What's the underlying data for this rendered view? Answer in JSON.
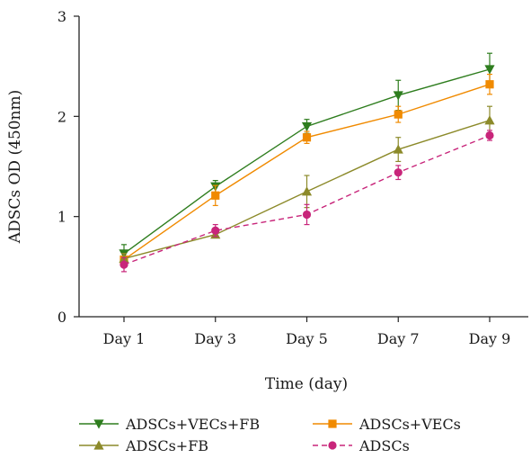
{
  "chart_data": {
    "type": "line",
    "categories": [
      "Day 1",
      "Day 3",
      "Day 5",
      "Day 7",
      "Day 9"
    ],
    "xlabel": "Time (day)",
    "ylabel": "ADSCs OD (450nm)",
    "ylim": [
      0,
      3
    ],
    "yticks": [
      "0",
      "1",
      "2",
      "3"
    ],
    "grid": false,
    "legend_position": "bottom",
    "series": [
      {
        "name": "ADSCs+VECs+FB",
        "color": "#2e7d1e",
        "marker": "triangle-down",
        "dash": "solid",
        "values": [
          0.63,
          1.3,
          1.9,
          2.21,
          2.47
        ],
        "errors": [
          0.09,
          0.06,
          0.07,
          0.15,
          0.16
        ]
      },
      {
        "name": "ADSCs+VECs",
        "color": "#f08a00",
        "marker": "square",
        "dash": "solid",
        "values": [
          0.57,
          1.21,
          1.79,
          2.02,
          2.32
        ],
        "errors": [
          0.06,
          0.1,
          0.06,
          0.08,
          0.1
        ]
      },
      {
        "name": "ADSCs+FB",
        "color": "#8c8a2a",
        "marker": "triangle-up",
        "dash": "solid",
        "values": [
          0.58,
          0.82,
          1.25,
          1.67,
          1.96
        ],
        "errors": [
          0.05,
          0.02,
          0.16,
          0.12,
          0.14
        ]
      },
      {
        "name": "ADSCs",
        "color": "#c8257a",
        "marker": "circle",
        "dash": "dashed",
        "values": [
          0.52,
          0.86,
          1.02,
          1.44,
          1.81
        ],
        "errors": [
          0.07,
          0.06,
          0.1,
          0.07,
          0.05
        ]
      }
    ]
  }
}
